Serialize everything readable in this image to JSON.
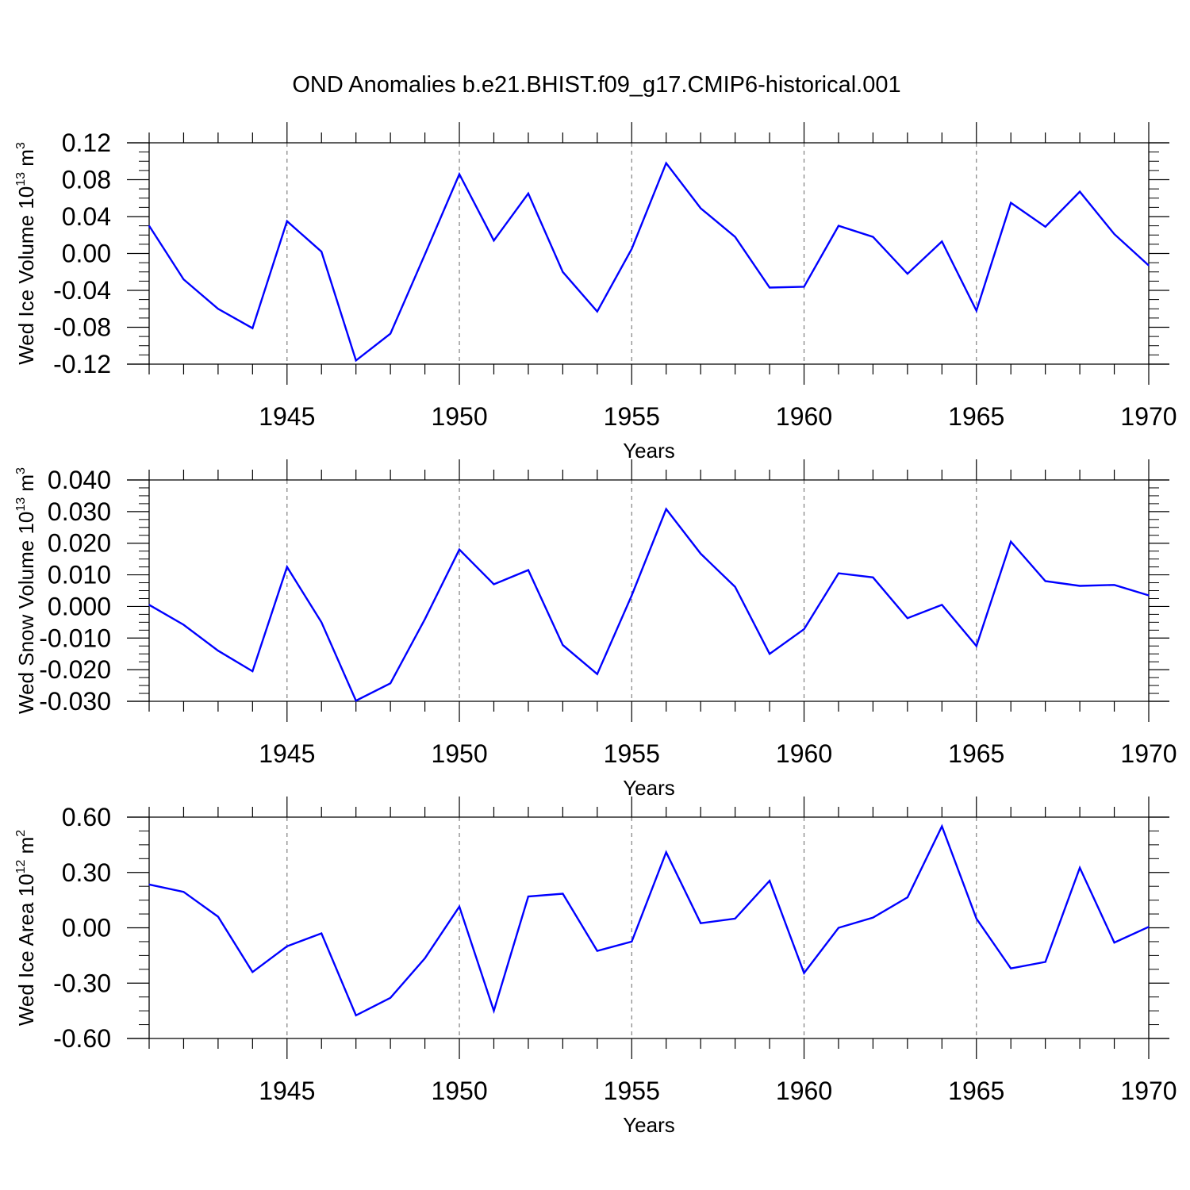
{
  "title": "OND Anomalies b.e21.BHIST.f09_g17.CMIP6-historical.001",
  "colors": {
    "line": "#0000ff",
    "axis": "#000000",
    "grid": "#808080"
  },
  "chart_data": [
    {
      "type": "line",
      "ylabel": {
        "text": "Wed Ice Volume 10",
        "sup": "13",
        "tail": " m",
        "sup2": "3"
      },
      "xlabel": "Years",
      "xlim": [
        1941,
        1970
      ],
      "ylim": [
        -0.12,
        0.12
      ],
      "yticks": [
        -0.12,
        -0.08,
        -0.04,
        0.0,
        0.04,
        0.08,
        0.12
      ],
      "ytick_labels": [
        "-0.12",
        "-0.08",
        "-0.04",
        "0.00",
        "0.04",
        "0.08",
        "0.12"
      ],
      "xticks": [
        1945,
        1950,
        1955,
        1960,
        1965,
        1970
      ],
      "xtick_labels": [
        "1945",
        "1950",
        "1955",
        "1960",
        "1965",
        "1970"
      ],
      "grid": "vertical dashed at major x ticks",
      "series": [
        {
          "x": [
            1941,
            1942,
            1943,
            1944,
            1945,
            1946,
            1947,
            1948,
            1949,
            1950,
            1951,
            1952,
            1953,
            1954,
            1955,
            1956,
            1957,
            1958,
            1959,
            1960,
            1961,
            1962,
            1963,
            1964,
            1965,
            1966,
            1967,
            1968,
            1969,
            1970
          ],
          "values": [
            0.03,
            -0.028,
            -0.06,
            -0.081,
            0.035,
            0.002,
            -0.116,
            -0.087,
            -0.001,
            0.086,
            0.014,
            0.065,
            -0.02,
            -0.063,
            0.005,
            0.098,
            0.049,
            0.018,
            -0.037,
            -0.036,
            0.03,
            0.018,
            -0.022,
            0.013,
            -0.062,
            0.055,
            0.029,
            0.067,
            0.021,
            -0.013
          ]
        }
      ]
    },
    {
      "type": "line",
      "ylabel": {
        "text": "Wed Snow Volume 10",
        "sup": "13",
        "tail": " m",
        "sup2": "3"
      },
      "xlabel": "Years",
      "xlim": [
        1941,
        1970
      ],
      "ylim": [
        -0.03,
        0.04
      ],
      "yticks": [
        -0.03,
        -0.02,
        -0.01,
        0.0,
        0.01,
        0.02,
        0.03,
        0.04
      ],
      "ytick_labels": [
        "-0.030",
        "-0.020",
        "-0.010",
        "0.000",
        "0.010",
        "0.020",
        "0.030",
        "0.040"
      ],
      "xticks": [
        1945,
        1950,
        1955,
        1960,
        1965,
        1970
      ],
      "xtick_labels": [
        "1945",
        "1950",
        "1955",
        "1960",
        "1965",
        "1970"
      ],
      "grid": "vertical dashed at major x ticks",
      "series": [
        {
          "x": [
            1941,
            1942,
            1943,
            1944,
            1945,
            1946,
            1947,
            1948,
            1949,
            1950,
            1951,
            1952,
            1953,
            1954,
            1955,
            1956,
            1957,
            1958,
            1959,
            1960,
            1961,
            1962,
            1963,
            1964,
            1965,
            1966,
            1967,
            1968,
            1969,
            1970
          ],
          "values": [
            0.0005,
            -0.0058,
            -0.014,
            -0.0205,
            0.0125,
            -0.005,
            -0.0298,
            -0.0243,
            -0.004,
            0.018,
            0.007,
            0.0115,
            -0.0122,
            -0.0214,
            0.0035,
            0.0308,
            0.0167,
            0.0062,
            -0.015,
            -0.0072,
            0.0105,
            0.0092,
            -0.0037,
            0.0005,
            -0.0125,
            0.0205,
            0.008,
            0.0065,
            0.0068,
            0.0035
          ]
        }
      ]
    },
    {
      "type": "line",
      "ylabel": {
        "text": "Wed Ice Area 10",
        "sup": "12",
        "tail": " m",
        "sup2": "2"
      },
      "xlabel": "Years",
      "xlim": [
        1941,
        1970
      ],
      "ylim": [
        -0.6,
        0.6
      ],
      "yticks": [
        -0.6,
        -0.3,
        0.0,
        0.3,
        0.6
      ],
      "ytick_labels": [
        "-0.60",
        "-0.30",
        "0.00",
        "0.30",
        "0.60"
      ],
      "xticks": [
        1945,
        1950,
        1955,
        1960,
        1965,
        1970
      ],
      "xtick_labels": [
        "1945",
        "1950",
        "1955",
        "1960",
        "1965",
        "1970"
      ],
      "grid": "vertical dashed at major x ticks",
      "series": [
        {
          "x": [
            1941,
            1942,
            1943,
            1944,
            1945,
            1946,
            1947,
            1948,
            1949,
            1950,
            1951,
            1952,
            1953,
            1954,
            1955,
            1956,
            1957,
            1958,
            1959,
            1960,
            1961,
            1962,
            1963,
            1964,
            1965,
            1966,
            1967,
            1968,
            1969,
            1970
          ],
          "values": [
            0.235,
            0.195,
            0.06,
            -0.24,
            -0.1,
            -0.03,
            -0.475,
            -0.38,
            -0.165,
            0.115,
            -0.45,
            0.17,
            0.185,
            -0.125,
            -0.075,
            0.41,
            0.025,
            0.05,
            0.255,
            -0.245,
            0.0,
            0.055,
            0.165,
            0.55,
            0.05,
            -0.22,
            -0.185,
            0.325,
            -0.08,
            0.005
          ]
        }
      ]
    }
  ]
}
